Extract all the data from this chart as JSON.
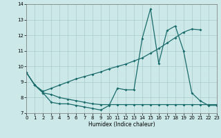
{
  "xlabel": "Humidex (Indice chaleur)",
  "bg_color": "#cce8e8",
  "line_color": "#1a6b6b",
  "grid_color": "#aacccc",
  "ylim": [
    7,
    14
  ],
  "xlim": [
    0,
    23
  ],
  "yticks": [
    7,
    8,
    9,
    10,
    11,
    12,
    13,
    14
  ],
  "xticks": [
    0,
    1,
    2,
    3,
    4,
    5,
    6,
    7,
    8,
    9,
    10,
    11,
    12,
    13,
    14,
    15,
    16,
    17,
    18,
    19,
    20,
    21,
    22,
    23
  ],
  "line1_y": [
    9.6,
    8.8,
    8.3,
    7.7,
    7.6,
    7.6,
    7.5,
    7.4,
    7.3,
    7.2,
    7.5,
    8.6,
    8.5,
    8.5,
    11.8,
    13.7,
    10.2,
    12.3,
    12.6,
    11.0,
    8.3,
    7.8,
    7.5,
    7.5
  ],
  "line2_y": [
    9.6,
    8.8,
    8.3,
    8.2,
    8.0,
    7.9,
    7.8,
    7.7,
    7.6,
    7.55,
    7.55,
    7.55,
    7.55,
    7.55,
    7.55,
    7.55,
    7.55,
    7.55,
    7.55,
    7.55,
    7.55,
    7.55,
    7.55,
    7.55
  ],
  "line3_y": [
    9.6,
    8.8,
    8.4,
    8.6,
    8.8,
    9.0,
    9.2,
    9.35,
    9.5,
    9.65,
    9.85,
    10.0,
    10.15,
    10.35,
    10.55,
    10.85,
    11.15,
    11.5,
    11.85,
    12.2,
    12.4,
    12.35,
    null,
    null
  ]
}
